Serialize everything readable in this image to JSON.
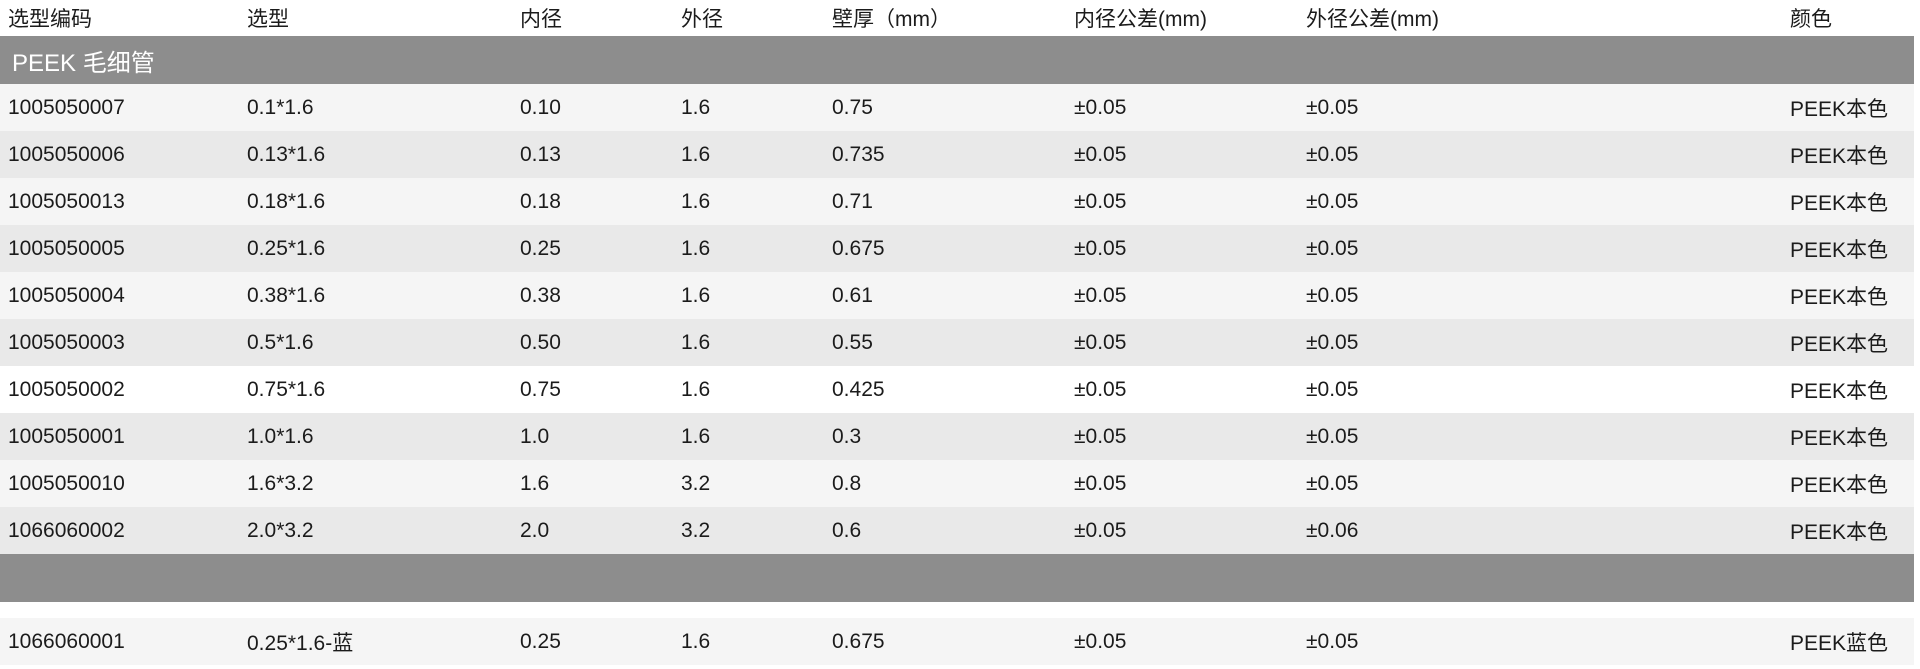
{
  "table": {
    "columns": [
      {
        "key": "code",
        "label": "选型编码"
      },
      {
        "key": "model",
        "label": "选型"
      },
      {
        "key": "id",
        "label": "内径"
      },
      {
        "key": "od",
        "label": "外径"
      },
      {
        "key": "wall",
        "label": "壁厚（mm）"
      },
      {
        "key": "id-tol",
        "label": "内径公差(mm)"
      },
      {
        "key": "od-tol",
        "label": "外径公差(mm)"
      },
      {
        "key": "color",
        "label": "颜色"
      }
    ],
    "sections": [
      {
        "title": "PEEK 毛细管",
        "gap_after_band": false,
        "rows": [
          {
            "bg": "light",
            "cells": [
              "1005050007",
              "0.1*1.6",
              "0.10",
              "1.6",
              "0.75",
              "±0.05",
              "±0.05",
              "PEEK本色"
            ]
          },
          {
            "bg": "dark",
            "cells": [
              "1005050006",
              "0.13*1.6",
              "0.13",
              "1.6",
              "0.735",
              "±0.05",
              "±0.05",
              "PEEK本色"
            ]
          },
          {
            "bg": "light",
            "cells": [
              "1005050013",
              "0.18*1.6",
              "0.18",
              "1.6",
              "0.71",
              "±0.05",
              "±0.05",
              "PEEK本色"
            ]
          },
          {
            "bg": "dark",
            "cells": [
              "1005050005",
              "0.25*1.6",
              "0.25",
              "1.6",
              "0.675",
              "±0.05",
              "±0.05",
              "PEEK本色"
            ]
          },
          {
            "bg": "light",
            "cells": [
              "1005050004",
              "0.38*1.6",
              "0.38",
              "1.6",
              "0.61",
              "±0.05",
              "±0.05",
              "PEEK本色"
            ]
          },
          {
            "bg": "dark",
            "cells": [
              "1005050003",
              "0.5*1.6",
              "0.50",
              "1.6",
              "0.55",
              "±0.05",
              "±0.05",
              "PEEK本色"
            ]
          },
          {
            "bg": "white",
            "cells": [
              "1005050002",
              "0.75*1.6",
              "0.75",
              "1.6",
              "0.425",
              "±0.05",
              "±0.05",
              "PEEK本色"
            ]
          },
          {
            "bg": "dark",
            "cells": [
              "1005050001",
              "1.0*1.6",
              "1.0",
              "1.6",
              "0.3",
              "±0.05",
              "±0.05",
              "PEEK本色"
            ]
          },
          {
            "bg": "light",
            "cells": [
              "1005050010",
              "1.6*3.2",
              "1.6",
              "3.2",
              "0.8",
              "±0.05",
              "±0.05",
              "PEEK本色"
            ]
          },
          {
            "bg": "dark",
            "cells": [
              "1066060002",
              "2.0*3.2",
              "2.0",
              "3.2",
              "0.6",
              "±0.05",
              "±0.06",
              "PEEK本色"
            ]
          }
        ]
      },
      {
        "title": "",
        "gap_after_band": true,
        "rows": [
          {
            "bg": "light",
            "cells": [
              "1066060001",
              "0.25*1.6-蓝",
              "0.25",
              "1.6",
              "0.675",
              "±0.05",
              "±0.05",
              "PEEK蓝色"
            ]
          }
        ]
      }
    ]
  },
  "colors": {
    "band_bg": "#8d8d8d",
    "band_text": "#ffffff",
    "row_light": "#f5f5f5",
    "row_dark": "#e9e9e9",
    "row_white": "#ffffff",
    "text": "#1b1b1b",
    "page_bg": "#ffffff"
  }
}
